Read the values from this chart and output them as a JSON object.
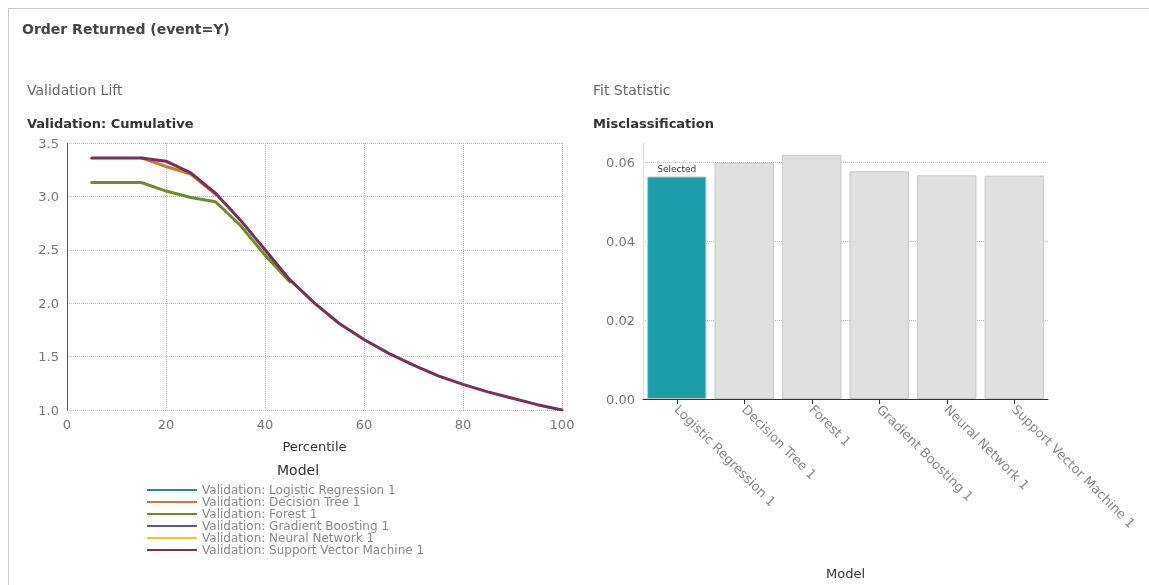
{
  "chart_data": [
    {
      "type": "line",
      "subtitle": "Validation Lift",
      "title": "Validation: Cumulative",
      "xlabel": "Percentile",
      "legend_title": "Model",
      "legend": "bottom",
      "grid": true,
      "annotations": [
        "Order Returned (event=Y)"
      ],
      "x": [
        5,
        10,
        15,
        20,
        25,
        30,
        35,
        40,
        45,
        50,
        55,
        60,
        65,
        70,
        75,
        80,
        85,
        90,
        95,
        100
      ],
      "xlim": [
        0,
        100
      ],
      "xticks": [
        0,
        20,
        40,
        60,
        80,
        100
      ],
      "ylim": [
        1.0,
        3.5
      ],
      "yticks": [
        {
          "value": 1.0,
          "label": "1.0"
        },
        {
          "value": 1.5,
          "label": "1.5"
        },
        {
          "value": 2.0,
          "label": "2.0"
        },
        {
          "value": 2.5,
          "label": "2.5"
        },
        {
          "value": 3.0,
          "label": "3.0"
        },
        {
          "value": 3.5,
          "label": "3.5"
        }
      ],
      "series": [
        {
          "name": "Validation: Logistic Regression 1",
          "color": "#2a8a8f",
          "values": [
            null,
            null,
            null,
            null,
            null,
            null,
            null,
            null,
            null,
            null,
            null,
            null,
            null,
            null,
            null,
            null,
            null,
            null,
            null,
            null
          ]
        },
        {
          "name": "Validation: Decision Tree 1",
          "color": "#d17a2a",
          "values": [
            null,
            null,
            3.36,
            3.28,
            3.21,
            3.02,
            null,
            null,
            null,
            null,
            null,
            null,
            null,
            null,
            null,
            null,
            null,
            null,
            null,
            null
          ]
        },
        {
          "name": "Validation: Forest 1",
          "color": "#6b8e23",
          "values": [
            3.13,
            3.13,
            3.13,
            3.05,
            2.99,
            2.95,
            2.73,
            2.45,
            2.2,
            null,
            null,
            null,
            null,
            null,
            null,
            null,
            null,
            null,
            null,
            null
          ]
        },
        {
          "name": "Validation: Gradient Boosting 1",
          "color": "#4a5fa8",
          "values": [
            null,
            null,
            null,
            null,
            null,
            null,
            null,
            null,
            null,
            null,
            null,
            null,
            null,
            null,
            null,
            null,
            null,
            null,
            null,
            null
          ]
        },
        {
          "name": "Validation: Neural Network 1",
          "color": "#f5c225",
          "values": [
            null,
            null,
            null,
            null,
            null,
            null,
            null,
            null,
            null,
            null,
            null,
            null,
            null,
            null,
            null,
            null,
            null,
            null,
            null,
            null
          ]
        },
        {
          "name": "Validation: Support Vector Machine 1",
          "color": "#7b2d5b",
          "values": [
            3.36,
            3.36,
            3.36,
            3.33,
            3.22,
            3.03,
            2.78,
            2.5,
            2.22,
            2.0,
            1.81,
            1.66,
            1.53,
            1.42,
            1.32,
            1.24,
            1.17,
            1.11,
            1.05,
            1.0
          ]
        }
      ]
    },
    {
      "type": "bar",
      "subtitle": "Fit Statistic",
      "title": "Misclassification",
      "xlabel": "Model",
      "grid": "y",
      "categories": [
        "Logistic Regression 1",
        "Decision Tree 1",
        "Forest 1",
        "Gradient Boosting 1",
        "Neural Network 1",
        "Support Vector Machine 1"
      ],
      "values": [
        0.0565,
        0.06,
        0.062,
        0.0578,
        0.0568,
        0.0567
      ],
      "colors": [
        "#1e9ea8",
        "#e0e0e0",
        "#e0e0e0",
        "#e0e0e0",
        "#e0e0e0",
        "#e0e0e0"
      ],
      "ylim": [
        0,
        0.065
      ],
      "yticks": [
        {
          "value": 0,
          "label": "0.00"
        },
        {
          "value": 0.02,
          "label": "0.02"
        },
        {
          "value": 0.04,
          "label": "0.04"
        },
        {
          "value": 0.06,
          "label": "0.06"
        }
      ],
      "annotations": [
        {
          "text": "Selected",
          "x": "Logistic Regression 1",
          "y": 0.0565
        }
      ]
    }
  ]
}
